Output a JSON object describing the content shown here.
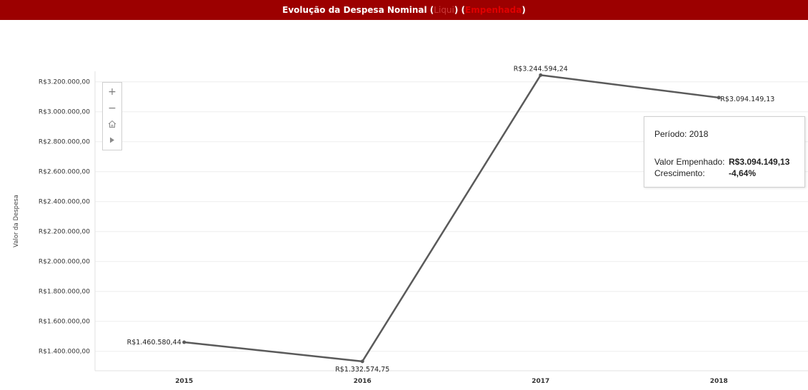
{
  "header": {
    "title_main": "Evolução da Despesa Nominal (",
    "toggle_inactive": "Liqui",
    "sep": ") (",
    "toggle_active": "Empenhada",
    "close_paren": ")"
  },
  "colors": {
    "header_bg": "#9c0000",
    "line": "#5a5a5a",
    "grid": "#eeeeee"
  },
  "chart_data": {
    "type": "line",
    "title": "Evolução da Despesa Nominal (Liqui) (Empenhada)",
    "xlabel": "",
    "ylabel": "Valor da Despesa",
    "categories": [
      "2015",
      "2016",
      "2017",
      "2018"
    ],
    "series": [
      {
        "values": [
          1460580.44,
          1332574.75,
          3244594.24,
          3094149.13
        ],
        "labels": [
          "R$1.460.580,44",
          "R$1.332.574,75",
          "R$3.244.594,24",
          "R$3.094.149,13"
        ]
      }
    ],
    "yticks": [
      1400000,
      1600000,
      1800000,
      2000000,
      2200000,
      2400000,
      2600000,
      2800000,
      3000000,
      3200000
    ],
    "ytick_labels": [
      "R$1.400.000,00",
      "R$1.600.000,00",
      "R$1.800.000,00",
      "R$2.000.000,00",
      "R$2.200.000,00",
      "R$2.400.000,00",
      "R$2.600.000,00",
      "R$2.800.000,00",
      "R$3.000.000,00",
      "R$3.200.000,00"
    ],
    "ylim": [
      1270000,
      3270000
    ],
    "grid": true
  },
  "zoom": {
    "zoom_in": "+",
    "zoom_out": "−",
    "home": "home-icon",
    "pause": "play-icon"
  },
  "tooltip": {
    "period": "Período: 2018",
    "value_label": "Valor Empenhado:",
    "value": "R$3.094.149,13",
    "growth_label": "Crescimento:",
    "growth": "-4,64%"
  }
}
